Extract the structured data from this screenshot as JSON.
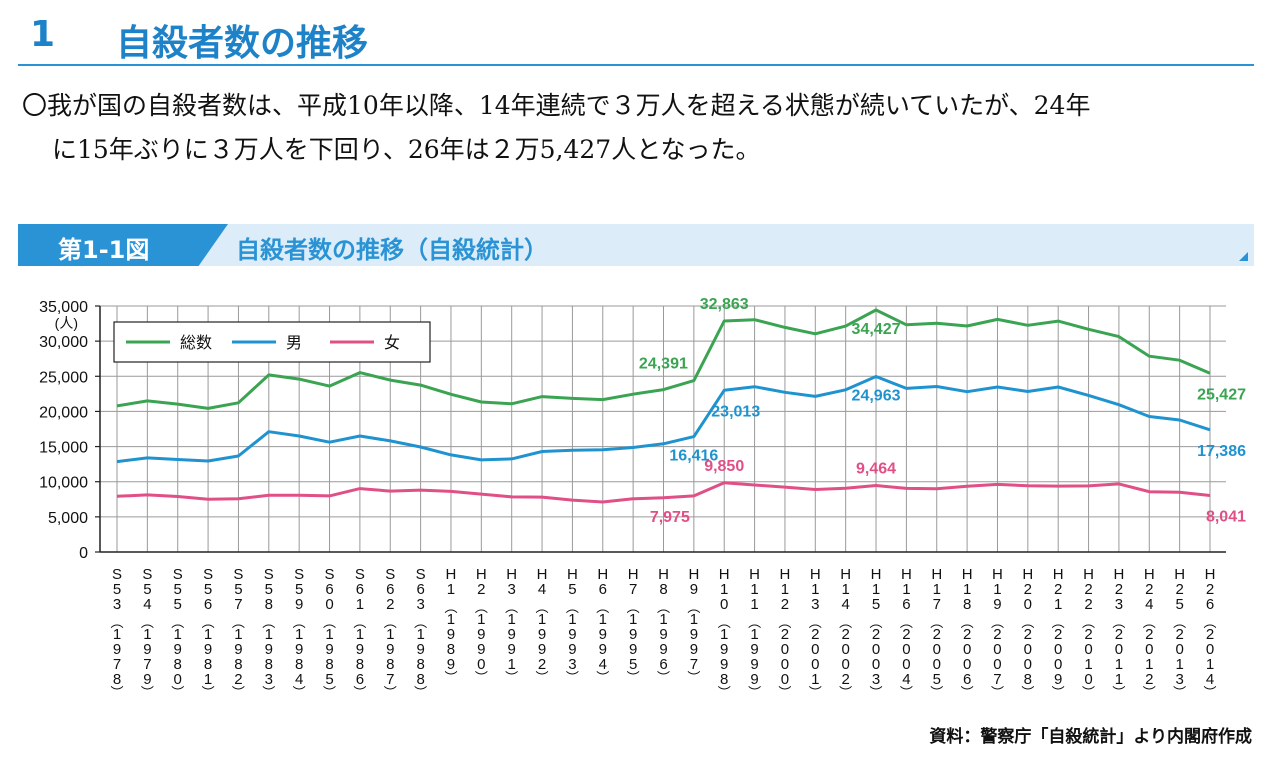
{
  "header": {
    "number": "1",
    "title": "自殺者数の推移"
  },
  "summary": {
    "line1": "〇我が国の自殺者数は、平成10年以降、14年連続で３万人を超える状態が続いていたが、24年",
    "line2": "に15年ぶりに３万人を下回り、26年は２万5,427人となった。"
  },
  "figure": {
    "number": "第1-1図",
    "title": "自殺者数の推移（自殺統計）"
  },
  "chart_data": {
    "type": "line",
    "unit_label": "(人)",
    "ylim": [
      0,
      35000
    ],
    "yticks": [
      0,
      5000,
      10000,
      15000,
      20000,
      25000,
      30000,
      35000
    ],
    "ytick_labels": [
      "0",
      "5,000",
      "10,000",
      "15,000",
      "20,000",
      "25,000",
      "30,000",
      "35,000"
    ],
    "grid": true,
    "legend_position": "top-left",
    "categories": [
      {
        "era": "S53",
        "year": "1978"
      },
      {
        "era": "S54",
        "year": "1979"
      },
      {
        "era": "S55",
        "year": "1980"
      },
      {
        "era": "S56",
        "year": "1981"
      },
      {
        "era": "S57",
        "year": "1982"
      },
      {
        "era": "S58",
        "year": "1983"
      },
      {
        "era": "S59",
        "year": "1984"
      },
      {
        "era": "S60",
        "year": "1985"
      },
      {
        "era": "S61",
        "year": "1986"
      },
      {
        "era": "S62",
        "year": "1987"
      },
      {
        "era": "S63",
        "year": "1988"
      },
      {
        "era": "H1",
        "year": "1989"
      },
      {
        "era": "H2",
        "year": "1990"
      },
      {
        "era": "H3",
        "year": "1991"
      },
      {
        "era": "H4",
        "year": "1992"
      },
      {
        "era": "H5",
        "year": "1993"
      },
      {
        "era": "H6",
        "year": "1994"
      },
      {
        "era": "H7",
        "year": "1995"
      },
      {
        "era": "H8",
        "year": "1996"
      },
      {
        "era": "H9",
        "year": "1997"
      },
      {
        "era": "H10",
        "year": "1998"
      },
      {
        "era": "H11",
        "year": "1999"
      },
      {
        "era": "H12",
        "year": "2000"
      },
      {
        "era": "H13",
        "year": "2001"
      },
      {
        "era": "H14",
        "year": "2002"
      },
      {
        "era": "H15",
        "year": "2003"
      },
      {
        "era": "H16",
        "year": "2004"
      },
      {
        "era": "H17",
        "year": "2005"
      },
      {
        "era": "H18",
        "year": "2006"
      },
      {
        "era": "H19",
        "year": "2007"
      },
      {
        "era": "H20",
        "year": "2008"
      },
      {
        "era": "H21",
        "year": "2009"
      },
      {
        "era": "H22",
        "year": "2010"
      },
      {
        "era": "H23",
        "year": "2011"
      },
      {
        "era": "H24",
        "year": "2012"
      },
      {
        "era": "H25",
        "year": "2013"
      },
      {
        "era": "H26",
        "year": "2014"
      }
    ],
    "series": [
      {
        "name": "総数",
        "color": "#3aa452",
        "values": [
          20788,
          21503,
          21048,
          20434,
          21228,
          25202,
          24596,
          23599,
          25524,
          24460,
          23742,
          22436,
          21346,
          21084,
          22104,
          21851,
          21679,
          22445,
          23104,
          24391,
          32863,
          33048,
          31957,
          31042,
          32143,
          34427,
          32325,
          32552,
          32155,
          33093,
          32249,
          32845,
          31690,
          30651,
          27858,
          27283,
          25427
        ],
        "labels": [
          {
            "index": 19,
            "text": "24,391",
            "pos": "above-left"
          },
          {
            "index": 20,
            "text": "32,863",
            "pos": "above"
          },
          {
            "index": 25,
            "text": "34,427",
            "pos": "below"
          },
          {
            "index": 36,
            "text": "25,427",
            "pos": "below-right"
          }
        ]
      },
      {
        "name": "男",
        "color": "#1f93cf",
        "values": [
          12859,
          13386,
          13155,
          12942,
          13654,
          17116,
          16508,
          15624,
          16497,
          15802,
          14934,
          13818,
          13102,
          13242,
          14296,
          14468,
          14560,
          14874,
          15393,
          16416,
          23013,
          23512,
          22727,
          22144,
          23080,
          24963,
          23272,
          23540,
          22813,
          23478,
          22831,
          23472,
          22283,
          20955,
          19273,
          18787,
          17386
        ],
        "labels": [
          {
            "index": 19,
            "text": "16,416",
            "pos": "below"
          },
          {
            "index": 20,
            "text": "23,013",
            "pos": "below-right"
          },
          {
            "index": 25,
            "text": "24,963",
            "pos": "below"
          },
          {
            "index": 36,
            "text": "17,386",
            "pos": "below-right"
          }
        ]
      },
      {
        "name": "女",
        "color": "#e04f86",
        "values": [
          7929,
          8117,
          7893,
          7492,
          7574,
          8086,
          8088,
          7975,
          9027,
          8658,
          8808,
          8618,
          8244,
          7842,
          7808,
          7383,
          7119,
          7571,
          7711,
          7975,
          9850,
          9536,
          9230,
          8898,
          9063,
          9464,
          9053,
          9012,
          9342,
          9615,
          9418,
          9373,
          9407,
          9696,
          8585,
          8496,
          8041
        ],
        "labels": [
          {
            "index": 19,
            "text": "7,975",
            "pos": "below-left"
          },
          {
            "index": 20,
            "text": "9,850",
            "pos": "above"
          },
          {
            "index": 25,
            "text": "9,464",
            "pos": "above"
          },
          {
            "index": 36,
            "text": "8,041",
            "pos": "below-right"
          }
        ]
      }
    ]
  },
  "source": "資料：警察庁「自殺統計」より内閣府作成"
}
